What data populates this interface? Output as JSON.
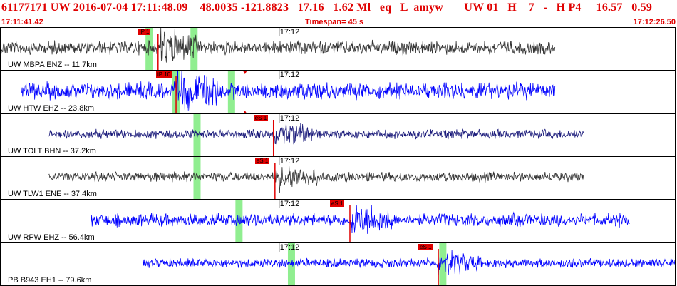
{
  "header": {
    "title": "61177171 UW 2016-07-04 17:11:48.09    48.0035 -121.8823   17.16   1.62 Ml   eq   L  amyw       UW 01   H    7   -   H P4     16.57   0.59",
    "start_time": "17:11:41.42",
    "timespan": "Timespan=  45 s",
    "end_time": "17:12:26.50"
  },
  "colors": {
    "header_text": "#e00000",
    "pick_flag": "#e00000",
    "pick_line": "#e00000",
    "window": "#90ee90",
    "trace_dark": "#333333",
    "trace_blue": "#0000ff",
    "trace_navy": "#1a1a7a"
  },
  "panels": [
    {
      "station": "UW MBPA ENZ -- 11.7km",
      "minute_label": "17:12",
      "pick_label": "iP 1",
      "trace_color": "dark",
      "time_start_s": 0.0,
      "time_end_s": 37.0,
      "pick_s": 10.5,
      "windows_s": [
        9.9,
        12.9
      ],
      "amplitude": 0.38,
      "arrival_mark": false
    },
    {
      "station": "UW HTW EHZ -- 23.8km",
      "minute_label": "17:12",
      "pick_label": "iP 10",
      "trace_color": "blue",
      "time_start_s": 1.4,
      "time_end_s": 37.0,
      "pick_s": 11.7,
      "windows_s": [
        11.7,
        15.4
      ],
      "amplitude": 0.45,
      "arrival_mark": true
    },
    {
      "station": "UW TOLT BHN -- 37.2km",
      "minute_label": "17:12",
      "pick_label": "eS 1",
      "trace_color": "navy",
      "time_start_s": 3.2,
      "time_end_s": 38.9,
      "pick_s": 18.2,
      "windows_s": [
        13.1
      ],
      "amplitude": 0.25,
      "arrival_mark": false
    },
    {
      "station": "UW TLW1 ENE -- 37.4km",
      "minute_label": "17:12",
      "pick_label": "eS 1",
      "trace_color": "dark",
      "time_start_s": 3.2,
      "time_end_s": 38.9,
      "pick_s": 18.3,
      "windows_s": [
        13.1
      ],
      "amplitude": 0.27,
      "arrival_mark": false
    },
    {
      "station": "UW RPW EHZ -- 56.4km",
      "minute_label": "17:12",
      "pick_label": "eS 1",
      "trace_color": "blue",
      "time_start_s": 6.0,
      "time_end_s": 42.0,
      "pick_s": 23.3,
      "windows_s": [
        15.9
      ],
      "amplitude": 0.35,
      "arrival_mark": false
    },
    {
      "station": "PB B943 EH1 -- 79.6km",
      "minute_label": "17:12",
      "pick_label": "eS 1",
      "trace_color": "blue",
      "time_start_s": 9.5,
      "time_end_s": 45.0,
      "pick_s": 29.2,
      "windows_s": [
        19.4,
        29.5
      ],
      "amplitude": 0.25,
      "arrival_mark": false
    }
  ]
}
